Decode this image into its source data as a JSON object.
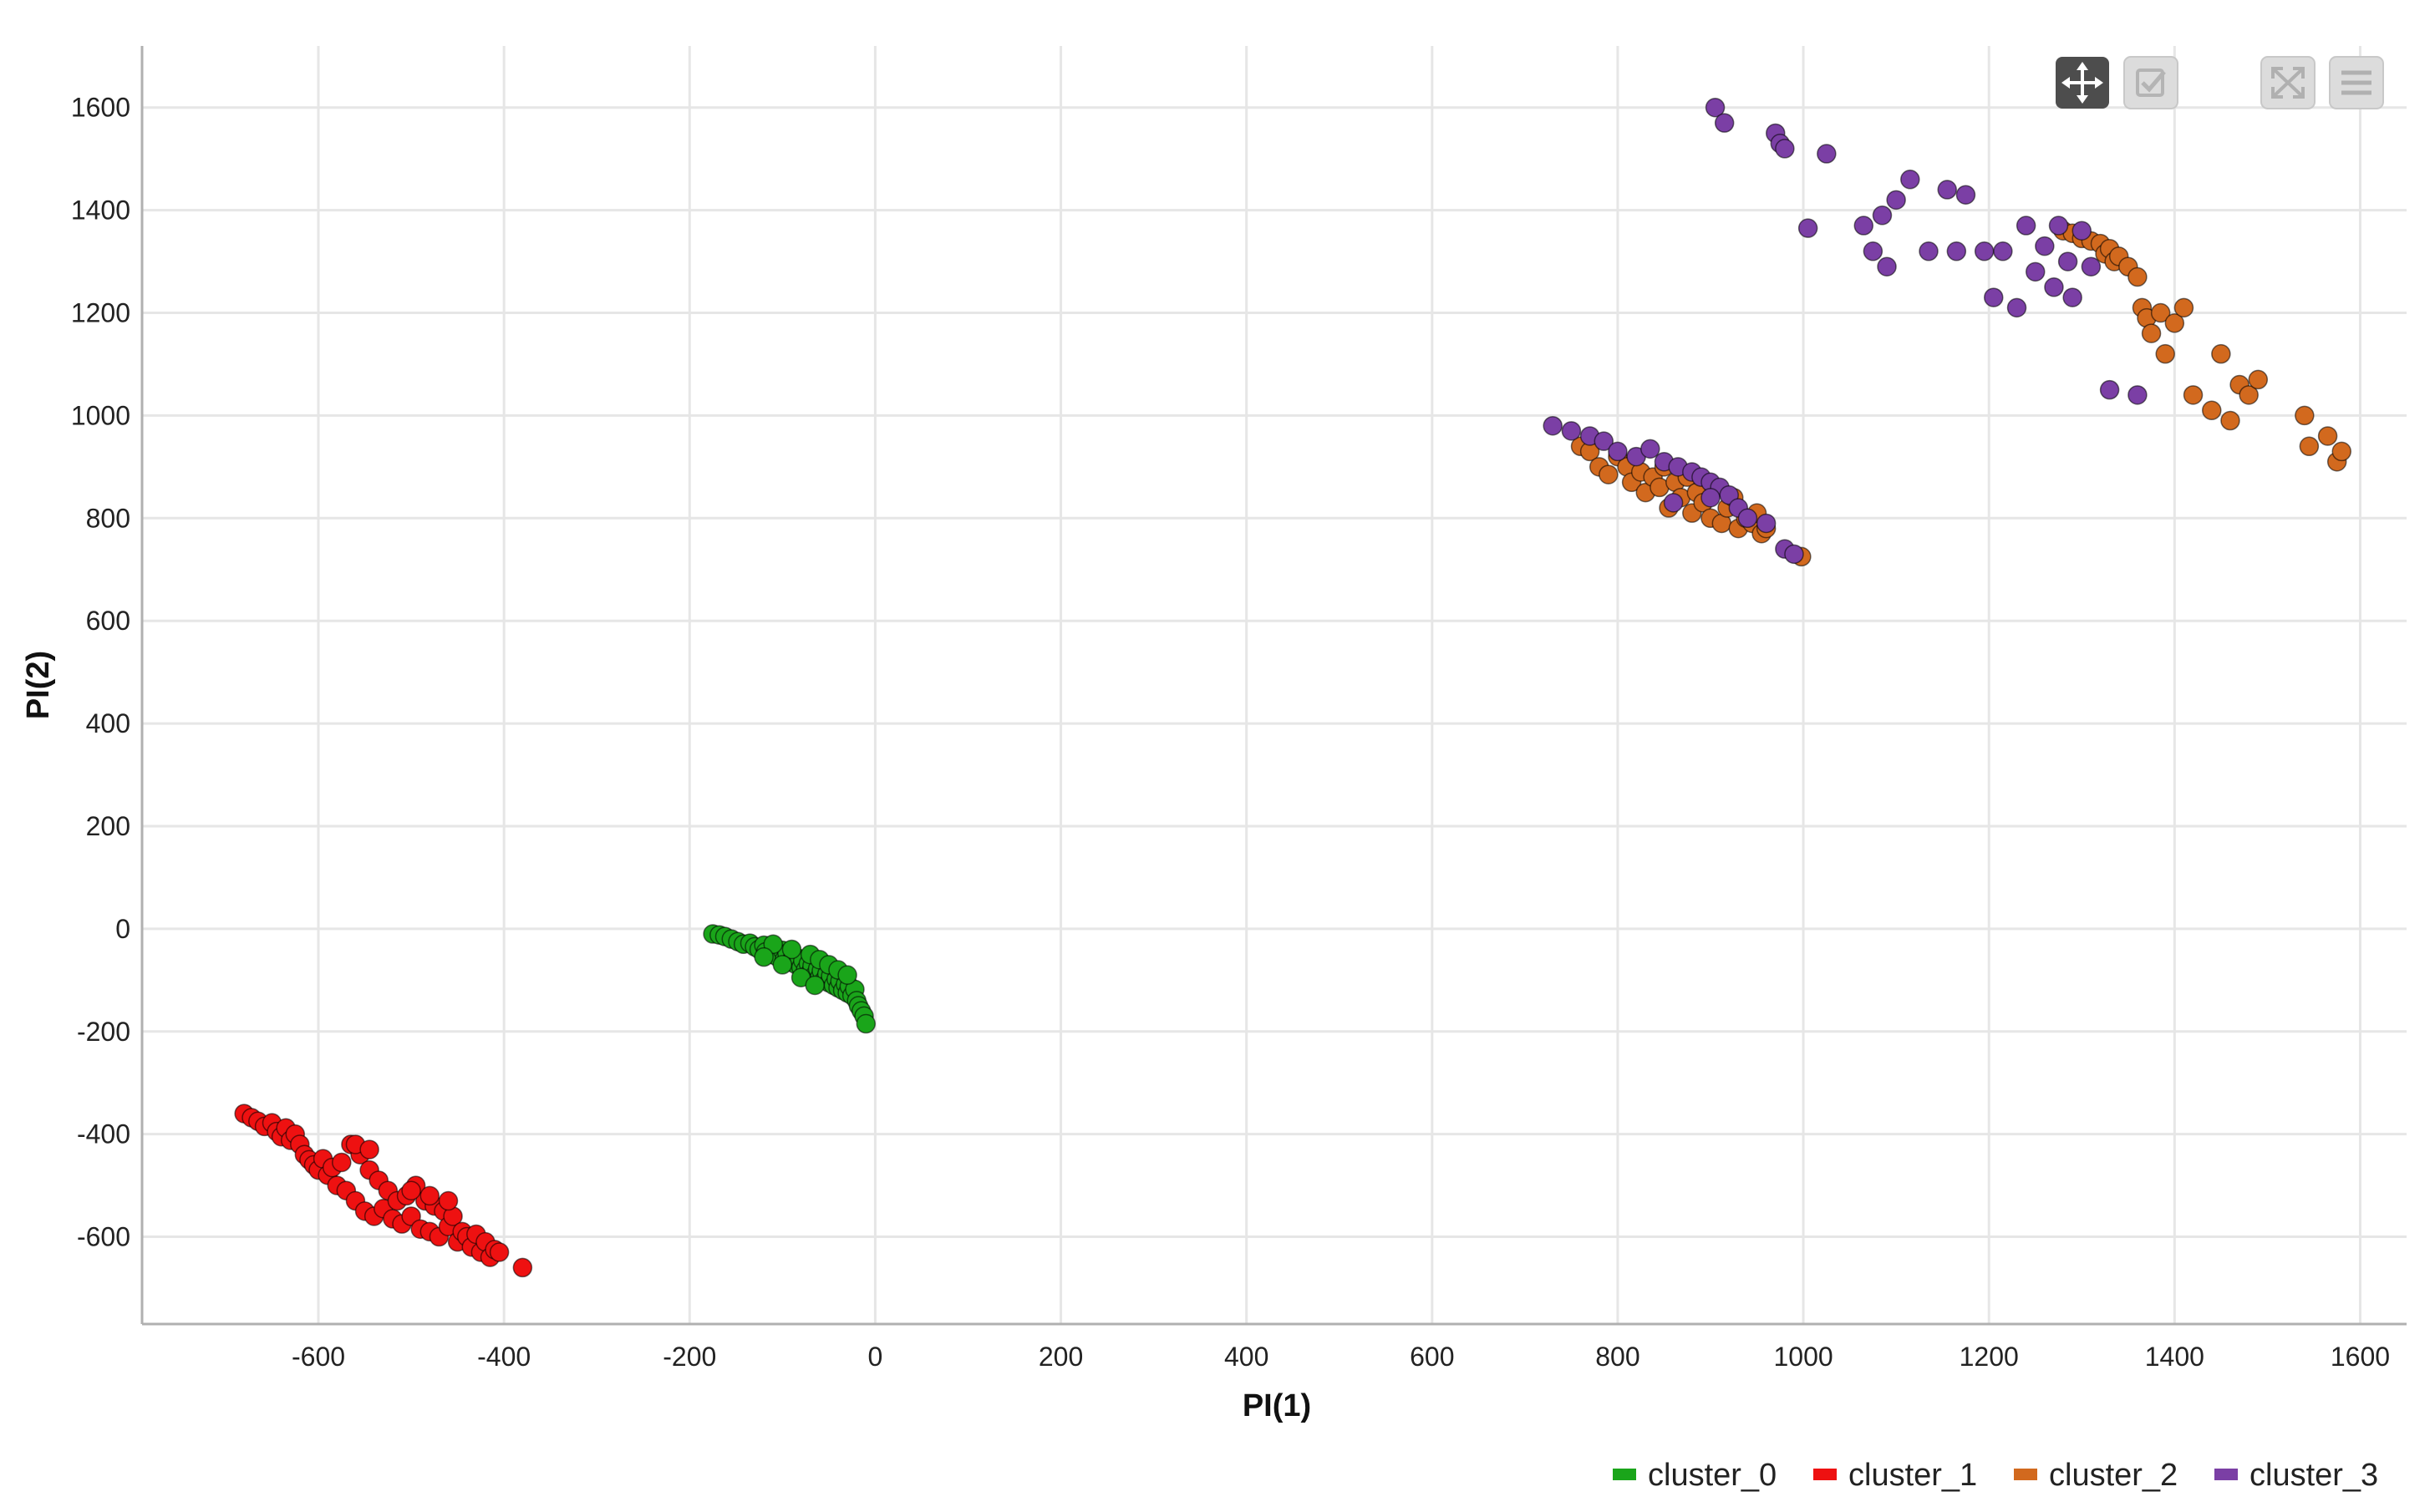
{
  "chart_data": {
    "type": "scatter",
    "title": "",
    "xlabel": "PI(1)",
    "ylabel": "PI(2)",
    "xlim": [
      -790,
      1650
    ],
    "ylim": [
      -770,
      1720
    ],
    "xticks": [
      -600,
      -400,
      -200,
      0,
      200,
      400,
      600,
      800,
      1000,
      1200,
      1400,
      1600
    ],
    "yticks": [
      -600,
      -400,
      -200,
      0,
      200,
      400,
      600,
      800,
      1000,
      1200,
      1400,
      1600
    ],
    "grid": true,
    "legend_position": "bottom-right",
    "series": [
      {
        "name": "cluster_0",
        "color": "#1aa51a",
        "points": [
          [
            -175,
            -10
          ],
          [
            -168,
            -12
          ],
          [
            -162,
            -15
          ],
          [
            -155,
            -20
          ],
          [
            -148,
            -25
          ],
          [
            -142,
            -30
          ],
          [
            -135,
            -28
          ],
          [
            -130,
            -35
          ],
          [
            -125,
            -40
          ],
          [
            -120,
            -32
          ],
          [
            -118,
            -45
          ],
          [
            -112,
            -50
          ],
          [
            -108,
            -38
          ],
          [
            -105,
            -55
          ],
          [
            -100,
            -42
          ],
          [
            -98,
            -60
          ],
          [
            -95,
            -48
          ],
          [
            -92,
            -65
          ],
          [
            -88,
            -52
          ],
          [
            -85,
            -70
          ],
          [
            -82,
            -58
          ],
          [
            -80,
            -75
          ],
          [
            -78,
            -62
          ],
          [
            -75,
            -80
          ],
          [
            -72,
            -68
          ],
          [
            -70,
            -85
          ],
          [
            -68,
            -72
          ],
          [
            -65,
            -90
          ],
          [
            -62,
            -78
          ],
          [
            -60,
            -95
          ],
          [
            -58,
            -82
          ],
          [
            -55,
            -100
          ],
          [
            -52,
            -88
          ],
          [
            -50,
            -105
          ],
          [
            -48,
            -92
          ],
          [
            -45,
            -110
          ],
          [
            -42,
            -98
          ],
          [
            -40,
            -115
          ],
          [
            -38,
            -102
          ],
          [
            -35,
            -120
          ],
          [
            -32,
            -108
          ],
          [
            -30,
            -125
          ],
          [
            -28,
            -112
          ],
          [
            -25,
            -130
          ],
          [
            -22,
            -118
          ],
          [
            -20,
            -140
          ],
          [
            -18,
            -150
          ],
          [
            -15,
            -160
          ],
          [
            -12,
            -170
          ],
          [
            -10,
            -185
          ],
          [
            -110,
            -30
          ],
          [
            -90,
            -40
          ],
          [
            -70,
            -50
          ],
          [
            -60,
            -60
          ],
          [
            -50,
            -70
          ],
          [
            -40,
            -80
          ],
          [
            -30,
            -90
          ],
          [
            -120,
            -55
          ],
          [
            -100,
            -70
          ],
          [
            -80,
            -95
          ],
          [
            -65,
            -110
          ]
        ]
      },
      {
        "name": "cluster_1",
        "color": "#ee1111",
        "points": [
          [
            -680,
            -360
          ],
          [
            -672,
            -368
          ],
          [
            -665,
            -375
          ],
          [
            -658,
            -385
          ],
          [
            -650,
            -378
          ],
          [
            -645,
            -395
          ],
          [
            -640,
            -405
          ],
          [
            -635,
            -388
          ],
          [
            -630,
            -412
          ],
          [
            -625,
            -400
          ],
          [
            -620,
            -420
          ],
          [
            -615,
            -440
          ],
          [
            -610,
            -450
          ],
          [
            -605,
            -460
          ],
          [
            -600,
            -470
          ],
          [
            -595,
            -448
          ],
          [
            -590,
            -480
          ],
          [
            -585,
            -465
          ],
          [
            -580,
            -500
          ],
          [
            -575,
            -455
          ],
          [
            -570,
            -510
          ],
          [
            -565,
            -420
          ],
          [
            -560,
            -530
          ],
          [
            -555,
            -440
          ],
          [
            -550,
            -550
          ],
          [
            -545,
            -470
          ],
          [
            -540,
            -560
          ],
          [
            -535,
            -490
          ],
          [
            -530,
            -545
          ],
          [
            -525,
            -510
          ],
          [
            -520,
            -565
          ],
          [
            -515,
            -530
          ],
          [
            -510,
            -575
          ],
          [
            -505,
            -520
          ],
          [
            -500,
            -560
          ],
          [
            -495,
            -500
          ],
          [
            -490,
            -585
          ],
          [
            -485,
            -530
          ],
          [
            -480,
            -590
          ],
          [
            -475,
            -540
          ],
          [
            -470,
            -600
          ],
          [
            -465,
            -550
          ],
          [
            -460,
            -580
          ],
          [
            -455,
            -560
          ],
          [
            -450,
            -610
          ],
          [
            -445,
            -590
          ],
          [
            -440,
            -600
          ],
          [
            -435,
            -620
          ],
          [
            -430,
            -595
          ],
          [
            -425,
            -630
          ],
          [
            -420,
            -610
          ],
          [
            -415,
            -640
          ],
          [
            -410,
            -625
          ],
          [
            -405,
            -630
          ],
          [
            -380,
            -660
          ],
          [
            -560,
            -420
          ],
          [
            -545,
            -430
          ],
          [
            -500,
            -510
          ],
          [
            -480,
            -520
          ],
          [
            -460,
            -530
          ]
        ]
      },
      {
        "name": "cluster_2",
        "color": "#d2691e",
        "points": [
          [
            760,
            940
          ],
          [
            770,
            930
          ],
          [
            780,
            900
          ],
          [
            790,
            885
          ],
          [
            800,
            920
          ],
          [
            810,
            900
          ],
          [
            815,
            870
          ],
          [
            825,
            890
          ],
          [
            830,
            850
          ],
          [
            838,
            880
          ],
          [
            845,
            860
          ],
          [
            850,
            900
          ],
          [
            855,
            820
          ],
          [
            862,
            870
          ],
          [
            868,
            840
          ],
          [
            875,
            880
          ],
          [
            880,
            810
          ],
          [
            885,
            850
          ],
          [
            892,
            830
          ],
          [
            900,
            800
          ],
          [
            905,
            860
          ],
          [
            912,
            790
          ],
          [
            918,
            820
          ],
          [
            925,
            840
          ],
          [
            930,
            780
          ],
          [
            938,
            800
          ],
          [
            945,
            790
          ],
          [
            950,
            810
          ],
          [
            955,
            770
          ],
          [
            960,
            780
          ],
          [
            998,
            725
          ],
          [
            1280,
            1360
          ],
          [
            1290,
            1355
          ],
          [
            1300,
            1345
          ],
          [
            1310,
            1340
          ],
          [
            1320,
            1335
          ],
          [
            1325,
            1315
          ],
          [
            1330,
            1325
          ],
          [
            1335,
            1300
          ],
          [
            1340,
            1310
          ],
          [
            1350,
            1290
          ],
          [
            1360,
            1270
          ],
          [
            1365,
            1210
          ],
          [
            1370,
            1190
          ],
          [
            1375,
            1160
          ],
          [
            1385,
            1200
          ],
          [
            1390,
            1120
          ],
          [
            1400,
            1180
          ],
          [
            1410,
            1210
          ],
          [
            1420,
            1040
          ],
          [
            1440,
            1010
          ],
          [
            1450,
            1120
          ],
          [
            1460,
            990
          ],
          [
            1470,
            1060
          ],
          [
            1480,
            1040
          ],
          [
            1490,
            1070
          ],
          [
            1540,
            1000
          ],
          [
            1545,
            940
          ],
          [
            1565,
            960
          ],
          [
            1575,
            910
          ],
          [
            1580,
            930
          ]
        ]
      },
      {
        "name": "cluster_3",
        "color": "#7b3fa5",
        "points": [
          [
            905,
            1600
          ],
          [
            915,
            1570
          ],
          [
            970,
            1550
          ],
          [
            975,
            1530
          ],
          [
            980,
            1520
          ],
          [
            1025,
            1510
          ],
          [
            1005,
            1365
          ],
          [
            1065,
            1370
          ],
          [
            1075,
            1320
          ],
          [
            1085,
            1390
          ],
          [
            1090,
            1290
          ],
          [
            1100,
            1420
          ],
          [
            1115,
            1460
          ],
          [
            1135,
            1320
          ],
          [
            1155,
            1440
          ],
          [
            1165,
            1320
          ],
          [
            1175,
            1430
          ],
          [
            1195,
            1320
          ],
          [
            1205,
            1230
          ],
          [
            1215,
            1320
          ],
          [
            1230,
            1210
          ],
          [
            1240,
            1370
          ],
          [
            1250,
            1280
          ],
          [
            1260,
            1330
          ],
          [
            1270,
            1250
          ],
          [
            1275,
            1370
          ],
          [
            1285,
            1300
          ],
          [
            1290,
            1230
          ],
          [
            1300,
            1360
          ],
          [
            1310,
            1290
          ],
          [
            1330,
            1050
          ],
          [
            1360,
            1040
          ],
          [
            730,
            980
          ],
          [
            750,
            970
          ],
          [
            770,
            960
          ],
          [
            785,
            950
          ],
          [
            800,
            930
          ],
          [
            820,
            920
          ],
          [
            835,
            935
          ],
          [
            850,
            910
          ],
          [
            865,
            900
          ],
          [
            880,
            890
          ],
          [
            890,
            880
          ],
          [
            900,
            870
          ],
          [
            910,
            860
          ],
          [
            920,
            845
          ],
          [
            860,
            830
          ],
          [
            900,
            840
          ],
          [
            930,
            820
          ],
          [
            940,
            800
          ],
          [
            960,
            790
          ],
          [
            980,
            740
          ],
          [
            990,
            730
          ]
        ]
      }
    ]
  },
  "toolbar": {
    "pan_icon": "pan-arrows-icon",
    "select_icon": "select-checkbox-icon",
    "fit_icon": "fit-to-screen-icon",
    "menu_icon": "hamburger-menu-icon"
  }
}
